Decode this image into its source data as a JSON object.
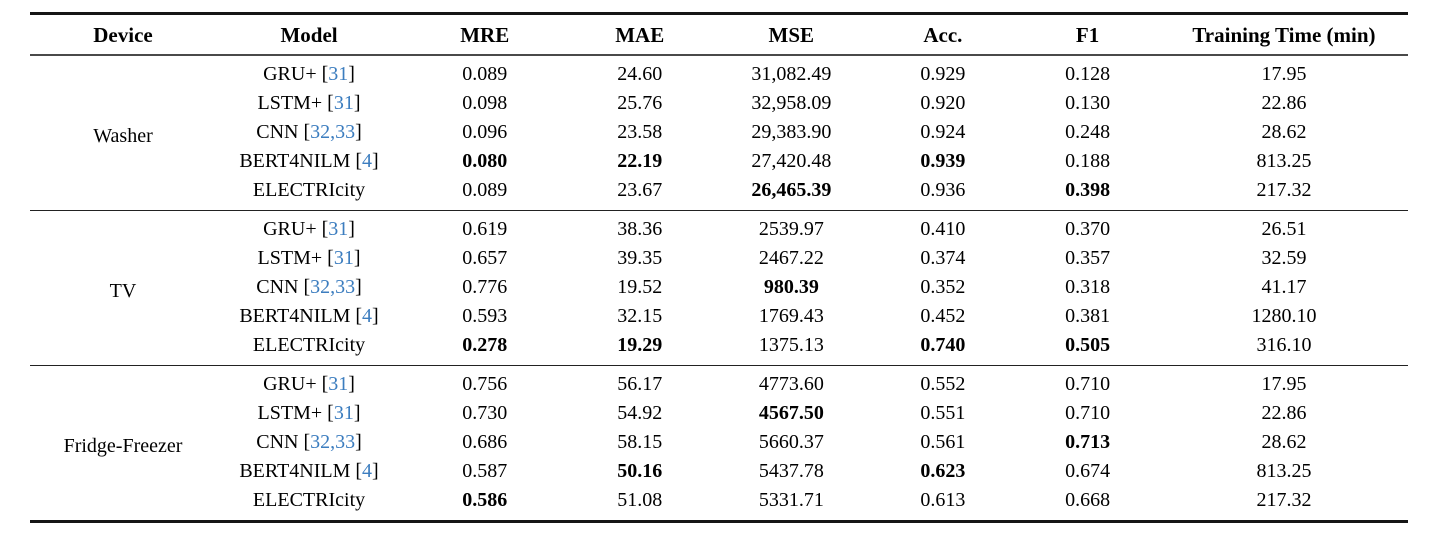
{
  "colors": {
    "citation_link": "#3c7dbf",
    "rule": "#151515",
    "text": "#000000"
  },
  "table": {
    "columns": [
      "Device",
      "Model",
      "MRE",
      "MAE",
      "MSE",
      "Acc.",
      "F1",
      "Training Time (min)"
    ],
    "groups": [
      {
        "device": "Washer",
        "rows": [
          {
            "prefix": "GRU+ [",
            "cite": "31",
            "suffix": "]",
            "mre": {
              "v": "0.089",
              "b": false
            },
            "mae": {
              "v": "24.60",
              "b": false
            },
            "mse": {
              "v": "31,082.49",
              "b": false
            },
            "acc": {
              "v": "0.929",
              "b": false
            },
            "f1": {
              "v": "0.128",
              "b": false
            },
            "tt": {
              "v": "17.95",
              "b": false
            }
          },
          {
            "prefix": "LSTM+ [",
            "cite": "31",
            "suffix": "]",
            "mre": {
              "v": "0.098",
              "b": false
            },
            "mae": {
              "v": "25.76",
              "b": false
            },
            "mse": {
              "v": "32,958.09",
              "b": false
            },
            "acc": {
              "v": "0.920",
              "b": false
            },
            "f1": {
              "v": "0.130",
              "b": false
            },
            "tt": {
              "v": "22.86",
              "b": false
            }
          },
          {
            "prefix": "CNN [",
            "cite": "32,33",
            "suffix": "]",
            "mre": {
              "v": "0.096",
              "b": false
            },
            "mae": {
              "v": "23.58",
              "b": false
            },
            "mse": {
              "v": "29,383.90",
              "b": false
            },
            "acc": {
              "v": "0.924",
              "b": false
            },
            "f1": {
              "v": "0.248",
              "b": false
            },
            "tt": {
              "v": "28.62",
              "b": false
            }
          },
          {
            "prefix": "BERT4NILM [",
            "cite": "4",
            "suffix": "]",
            "mre": {
              "v": "0.080",
              "b": true
            },
            "mae": {
              "v": "22.19",
              "b": true
            },
            "mse": {
              "v": "27,420.48",
              "b": false
            },
            "acc": {
              "v": "0.939",
              "b": true
            },
            "f1": {
              "v": "0.188",
              "b": false
            },
            "tt": {
              "v": "813.25",
              "b": false
            }
          },
          {
            "prefix": "ELECTRIcity",
            "cite": "",
            "suffix": "",
            "mre": {
              "v": "0.089",
              "b": false
            },
            "mae": {
              "v": "23.67",
              "b": false
            },
            "mse": {
              "v": "26,465.39",
              "b": true
            },
            "acc": {
              "v": "0.936",
              "b": false
            },
            "f1": {
              "v": "0.398",
              "b": true
            },
            "tt": {
              "v": "217.32",
              "b": false
            }
          }
        ]
      },
      {
        "device": "TV",
        "rows": [
          {
            "prefix": "GRU+ [",
            "cite": "31",
            "suffix": "]",
            "mre": {
              "v": "0.619",
              "b": false
            },
            "mae": {
              "v": "38.36",
              "b": false
            },
            "mse": {
              "v": "2539.97",
              "b": false
            },
            "acc": {
              "v": "0.410",
              "b": false
            },
            "f1": {
              "v": "0.370",
              "b": false
            },
            "tt": {
              "v": "26.51",
              "b": false
            }
          },
          {
            "prefix": "LSTM+ [",
            "cite": "31",
            "suffix": "]",
            "mre": {
              "v": "0.657",
              "b": false
            },
            "mae": {
              "v": "39.35",
              "b": false
            },
            "mse": {
              "v": "2467.22",
              "b": false
            },
            "acc": {
              "v": "0.374",
              "b": false
            },
            "f1": {
              "v": "0.357",
              "b": false
            },
            "tt": {
              "v": "32.59",
              "b": false
            }
          },
          {
            "prefix": "CNN [",
            "cite": "32,33",
            "suffix": "]",
            "mre": {
              "v": "0.776",
              "b": false
            },
            "mae": {
              "v": "19.52",
              "b": false
            },
            "mse": {
              "v": "980.39",
              "b": true
            },
            "acc": {
              "v": "0.352",
              "b": false
            },
            "f1": {
              "v": "0.318",
              "b": false
            },
            "tt": {
              "v": "41.17",
              "b": false
            }
          },
          {
            "prefix": "BERT4NILM [",
            "cite": "4",
            "suffix": "]",
            "mre": {
              "v": "0.593",
              "b": false
            },
            "mae": {
              "v": "32.15",
              "b": false
            },
            "mse": {
              "v": "1769.43",
              "b": false
            },
            "acc": {
              "v": "0.452",
              "b": false
            },
            "f1": {
              "v": "0.381",
              "b": false
            },
            "tt": {
              "v": "1280.10",
              "b": false
            }
          },
          {
            "prefix": "ELECTRIcity",
            "cite": "",
            "suffix": "",
            "mre": {
              "v": "0.278",
              "b": true
            },
            "mae": {
              "v": "19.29",
              "b": true
            },
            "mse": {
              "v": "1375.13",
              "b": false
            },
            "acc": {
              "v": "0.740",
              "b": true
            },
            "f1": {
              "v": "0.505",
              "b": true
            },
            "tt": {
              "v": "316.10",
              "b": false
            }
          }
        ]
      },
      {
        "device": "Fridge-Freezer",
        "rows": [
          {
            "prefix": "GRU+ [",
            "cite": "31",
            "suffix": "]",
            "mre": {
              "v": "0.756",
              "b": false
            },
            "mae": {
              "v": "56.17",
              "b": false
            },
            "mse": {
              "v": "4773.60",
              "b": false
            },
            "acc": {
              "v": "0.552",
              "b": false
            },
            "f1": {
              "v": "0.710",
              "b": false
            },
            "tt": {
              "v": "17.95",
              "b": false
            }
          },
          {
            "prefix": "LSTM+ [",
            "cite": "31",
            "suffix": "]",
            "mre": {
              "v": "0.730",
              "b": false
            },
            "mae": {
              "v": "54.92",
              "b": false
            },
            "mse": {
              "v": "4567.50",
              "b": true
            },
            "acc": {
              "v": "0.551",
              "b": false
            },
            "f1": {
              "v": "0.710",
              "b": false
            },
            "tt": {
              "v": "22.86",
              "b": false
            }
          },
          {
            "prefix": "CNN [",
            "cite": "32,33",
            "suffix": "]",
            "mre": {
              "v": "0.686",
              "b": false
            },
            "mae": {
              "v": "58.15",
              "b": false
            },
            "mse": {
              "v": "5660.37",
              "b": false
            },
            "acc": {
              "v": "0.561",
              "b": false
            },
            "f1": {
              "v": "0.713",
              "b": true
            },
            "tt": {
              "v": "28.62",
              "b": false
            }
          },
          {
            "prefix": "BERT4NILM [",
            "cite": "4",
            "suffix": "]",
            "mre": {
              "v": "0.587",
              "b": false
            },
            "mae": {
              "v": "50.16",
              "b": true
            },
            "mse": {
              "v": "5437.78",
              "b": false
            },
            "acc": {
              "v": "0.623",
              "b": true
            },
            "f1": {
              "v": "0.674",
              "b": false
            },
            "tt": {
              "v": "813.25",
              "b": false
            }
          },
          {
            "prefix": "ELECTRIcity",
            "cite": "",
            "suffix": "",
            "mre": {
              "v": "0.586",
              "b": true
            },
            "mae": {
              "v": "51.08",
              "b": false
            },
            "mse": {
              "v": "5331.71",
              "b": false
            },
            "acc": {
              "v": "0.613",
              "b": false
            },
            "f1": {
              "v": "0.668",
              "b": false
            },
            "tt": {
              "v": "217.32",
              "b": false
            }
          }
        ]
      }
    ]
  }
}
